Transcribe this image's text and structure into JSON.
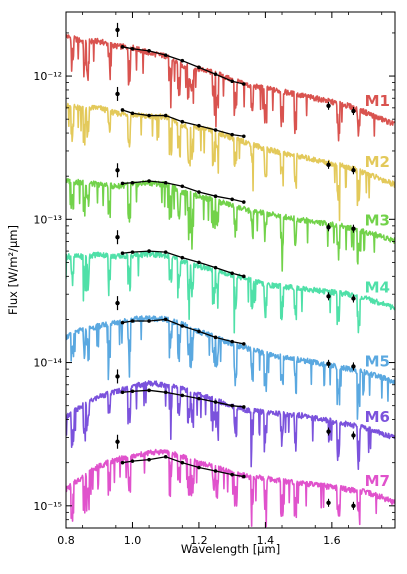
{
  "chart_data": {
    "type": "line",
    "xlabel": "Wavelength [μm]",
    "ylabel": "Flux [W/m²/μm]",
    "xlim": [
      0.8,
      1.79
    ],
    "ylim": [
      7e-16,
      2.8e-12
    ],
    "yscale": "log",
    "grid": false,
    "x_ticks": [
      0.8,
      1.0,
      1.2,
      1.4,
      1.6
    ],
    "x_tick_labels": [
      "0.8",
      "1.0",
      "1.2",
      "1.4",
      "1.6"
    ],
    "y_ticks": [
      1e-15,
      1e-14,
      1e-13,
      1e-12
    ],
    "y_tick_labels": [
      "10⁻¹⁵",
      "10⁻¹⁴",
      "10⁻¹³",
      "10⁻¹²"
    ],
    "series": [
      {
        "name": "M1",
        "color": "#d9534f",
        "model": [
          [
            0.8,
            1.9e-12
          ],
          [
            0.85,
            1.75e-12
          ],
          [
            0.9,
            1.75e-12
          ],
          [
            0.95,
            1.62e-12
          ],
          [
            1.0,
            1.58e-12
          ],
          [
            1.05,
            1.45e-12
          ],
          [
            1.1,
            1.38e-12
          ],
          [
            1.15,
            1.18e-12
          ],
          [
            1.2,
            1.12e-12
          ],
          [
            1.25,
            1.05e-12
          ],
          [
            1.3,
            9.4e-13
          ],
          [
            1.35,
            8.6e-13
          ],
          [
            1.4,
            8.2e-13
          ],
          [
            1.45,
            7.8e-13
          ],
          [
            1.5,
            7.4e-13
          ],
          [
            1.55,
            7e-13
          ],
          [
            1.6,
            6.6e-13
          ],
          [
            1.65,
            6.2e-13
          ],
          [
            1.7,
            5.6e-13
          ],
          [
            1.75,
            5e-13
          ],
          [
            1.79,
            4.6e-13
          ]
        ],
        "observed": [
          [
            0.955,
            2.1e-12
          ],
          [
            0.97,
            1.6e-12
          ],
          [
            1.0,
            1.55e-12
          ],
          [
            1.05,
            1.5e-12
          ],
          [
            1.1,
            1.4e-12
          ],
          [
            1.15,
            1.28e-12
          ],
          [
            1.2,
            1.15e-12
          ],
          [
            1.25,
            1.03e-12
          ],
          [
            1.3,
            9.2e-13
          ],
          [
            1.335,
            8.8e-13
          ]
        ],
        "photometry": [
          [
            1.59,
            6.2e-13
          ],
          [
            1.665,
            5.7e-13
          ]
        ]
      },
      {
        "name": "M2",
        "color": "#e3c95a",
        "model": [
          [
            0.8,
            6.2e-13
          ],
          [
            0.85,
            6e-13
          ],
          [
            0.9,
            6e-13
          ],
          [
            0.95,
            5.5e-13
          ],
          [
            1.0,
            5.4e-13
          ],
          [
            1.05,
            5.2e-13
          ],
          [
            1.1,
            5.2e-13
          ],
          [
            1.15,
            4.5e-13
          ],
          [
            1.2,
            4.3e-13
          ],
          [
            1.25,
            4.1e-13
          ],
          [
            1.3,
            3.7e-13
          ],
          [
            1.35,
            3.4e-13
          ],
          [
            1.4,
            3.1e-13
          ],
          [
            1.45,
            2.9e-13
          ],
          [
            1.5,
            2.75e-13
          ],
          [
            1.55,
            2.6e-13
          ],
          [
            1.6,
            2.45e-13
          ],
          [
            1.65,
            2.3e-13
          ],
          [
            1.7,
            2.1e-13
          ],
          [
            1.75,
            1.9e-13
          ],
          [
            1.79,
            1.75e-13
          ]
        ],
        "observed": [
          [
            0.955,
            7.5e-13
          ],
          [
            0.97,
            5.8e-13
          ],
          [
            1.0,
            5.5e-13
          ],
          [
            1.05,
            5.3e-13
          ],
          [
            1.1,
            5.3e-13
          ],
          [
            1.15,
            4.8e-13
          ],
          [
            1.2,
            4.5e-13
          ],
          [
            1.25,
            4.2e-13
          ],
          [
            1.3,
            3.9e-13
          ],
          [
            1.335,
            3.8e-13
          ]
        ],
        "photometry": [
          [
            1.59,
            2.4e-13
          ],
          [
            1.665,
            2.2e-13
          ]
        ]
      },
      {
        "name": "M3",
        "color": "#72d24a",
        "model": [
          [
            0.8,
            1.85e-13
          ],
          [
            0.85,
            1.8e-13
          ],
          [
            0.9,
            1.75e-13
          ],
          [
            0.95,
            1.7e-13
          ],
          [
            1.0,
            1.75e-13
          ],
          [
            1.05,
            1.8e-13
          ],
          [
            1.1,
            1.75e-13
          ],
          [
            1.15,
            1.55e-13
          ],
          [
            1.2,
            1.45e-13
          ],
          [
            1.25,
            1.35e-13
          ],
          [
            1.3,
            1.25e-13
          ],
          [
            1.35,
            1.15e-13
          ],
          [
            1.4,
            1.1e-13
          ],
          [
            1.45,
            1.05e-13
          ],
          [
            1.5,
            1e-13
          ],
          [
            1.55,
            9.6e-14
          ],
          [
            1.6,
            9.2e-14
          ],
          [
            1.65,
            8.8e-14
          ],
          [
            1.7,
            8.2e-14
          ],
          [
            1.75,
            7.6e-14
          ],
          [
            1.79,
            7.1e-14
          ]
        ],
        "observed": [
          [
            0.955,
            2.2e-13
          ],
          [
            0.97,
            1.78e-13
          ],
          [
            1.0,
            1.8e-13
          ],
          [
            1.05,
            1.85e-13
          ],
          [
            1.1,
            1.8e-13
          ],
          [
            1.15,
            1.7e-13
          ],
          [
            1.2,
            1.55e-13
          ],
          [
            1.25,
            1.45e-13
          ],
          [
            1.3,
            1.38e-13
          ],
          [
            1.335,
            1.32e-13
          ]
        ],
        "photometry": [
          [
            1.59,
            8.8e-14
          ],
          [
            1.665,
            8.6e-14
          ]
        ]
      },
      {
        "name": "M4",
        "color": "#4fe0a8",
        "model": [
          [
            0.8,
            5.5e-14
          ],
          [
            0.85,
            5.5e-14
          ],
          [
            0.9,
            5.7e-14
          ],
          [
            0.95,
            5.5e-14
          ],
          [
            1.0,
            5.6e-14
          ],
          [
            1.05,
            5.7e-14
          ],
          [
            1.1,
            5.6e-14
          ],
          [
            1.15,
            5.1e-14
          ],
          [
            1.2,
            4.7e-14
          ],
          [
            1.25,
            4.4e-14
          ],
          [
            1.3,
            4.1e-14
          ],
          [
            1.35,
            3.8e-14
          ],
          [
            1.4,
            3.5e-14
          ],
          [
            1.45,
            3.4e-14
          ],
          [
            1.5,
            3.3e-14
          ],
          [
            1.55,
            3.2e-14
          ],
          [
            1.6,
            3.1e-14
          ],
          [
            1.65,
            3e-14
          ],
          [
            1.7,
            2.8e-14
          ],
          [
            1.75,
            2.6e-14
          ],
          [
            1.79,
            2.4e-14
          ]
        ],
        "observed": [
          [
            0.955,
            7.5e-14
          ],
          [
            0.97,
            5.8e-14
          ],
          [
            1.0,
            5.9e-14
          ],
          [
            1.05,
            6e-14
          ],
          [
            1.1,
            5.9e-14
          ],
          [
            1.15,
            5.4e-14
          ],
          [
            1.2,
            5e-14
          ],
          [
            1.25,
            4.6e-14
          ],
          [
            1.3,
            4.2e-14
          ],
          [
            1.335,
            4e-14
          ]
        ],
        "photometry": [
          [
            1.59,
            2.9e-14
          ],
          [
            1.665,
            2.8e-14
          ]
        ]
      },
      {
        "name": "M5",
        "color": "#5aa8e0",
        "model": [
          [
            0.8,
            1.5e-14
          ],
          [
            0.85,
            1.7e-14
          ],
          [
            0.9,
            1.8e-14
          ],
          [
            0.95,
            1.9e-14
          ],
          [
            1.0,
            2e-14
          ],
          [
            1.05,
            2.05e-14
          ],
          [
            1.1,
            2e-14
          ],
          [
            1.15,
            1.85e-14
          ],
          [
            1.2,
            1.65e-14
          ],
          [
            1.25,
            1.5e-14
          ],
          [
            1.3,
            1.35e-14
          ],
          [
            1.35,
            1.25e-14
          ],
          [
            1.4,
            1.15e-14
          ],
          [
            1.45,
            1.1e-14
          ],
          [
            1.5,
            1.05e-14
          ],
          [
            1.55,
            1e-14
          ],
          [
            1.6,
            9.5e-15
          ],
          [
            1.65,
            9e-15
          ],
          [
            1.7,
            8.5e-15
          ],
          [
            1.75,
            7.9e-15
          ],
          [
            1.79,
            7.3e-15
          ]
        ],
        "observed": [
          [
            0.955,
            2.6e-14
          ],
          [
            0.97,
            1.9e-14
          ],
          [
            1.0,
            1.95e-14
          ],
          [
            1.05,
            1.95e-14
          ],
          [
            1.1,
            2e-14
          ],
          [
            1.15,
            1.8e-14
          ],
          [
            1.2,
            1.65e-14
          ],
          [
            1.25,
            1.5e-14
          ],
          [
            1.3,
            1.4e-14
          ],
          [
            1.335,
            1.35e-14
          ]
        ],
        "photometry": [
          [
            1.59,
            9.8e-15
          ],
          [
            1.665,
            9.4e-15
          ]
        ]
      },
      {
        "name": "M6",
        "color": "#7b52dc",
        "model": [
          [
            0.8,
            4.2e-15
          ],
          [
            0.85,
            5e-15
          ],
          [
            0.9,
            5.8e-15
          ],
          [
            0.95,
            6.3e-15
          ],
          [
            1.0,
            6.8e-15
          ],
          [
            1.05,
            7.2e-15
          ],
          [
            1.1,
            7e-15
          ],
          [
            1.15,
            6.6e-15
          ],
          [
            1.2,
            6e-15
          ],
          [
            1.25,
            5.5e-15
          ],
          [
            1.3,
            5e-15
          ],
          [
            1.35,
            4.6e-15
          ],
          [
            1.4,
            4.5e-15
          ],
          [
            1.45,
            4.4e-15
          ],
          [
            1.5,
            4.3e-15
          ],
          [
            1.55,
            4.1e-15
          ],
          [
            1.6,
            3.9e-15
          ],
          [
            1.65,
            3.7e-15
          ],
          [
            1.7,
            3.5e-15
          ],
          [
            1.75,
            3.2e-15
          ],
          [
            1.79,
            3e-15
          ]
        ],
        "observed": [
          [
            0.955,
            8e-15
          ],
          [
            0.97,
            6.2e-15
          ],
          [
            1.0,
            6.3e-15
          ],
          [
            1.05,
            6.4e-15
          ],
          [
            1.1,
            6.2e-15
          ],
          [
            1.15,
            5.9e-15
          ],
          [
            1.2,
            5.6e-15
          ],
          [
            1.25,
            5.3e-15
          ],
          [
            1.3,
            5e-15
          ],
          [
            1.335,
            4.9e-15
          ]
        ],
        "photometry": [
          [
            1.59,
            3.3e-15
          ],
          [
            1.665,
            3.1e-15
          ]
        ]
      },
      {
        "name": "M7",
        "color": "#e052cc",
        "model": [
          [
            0.8,
            1.3e-15
          ],
          [
            0.85,
            1.6e-15
          ],
          [
            0.9,
            1.9e-15
          ],
          [
            0.95,
            2.1e-15
          ],
          [
            1.0,
            2.2e-15
          ],
          [
            1.05,
            2.35e-15
          ],
          [
            1.1,
            2.4e-15
          ],
          [
            1.15,
            2.2e-15
          ],
          [
            1.2,
            2e-15
          ],
          [
            1.25,
            1.85e-15
          ],
          [
            1.3,
            1.7e-15
          ],
          [
            1.35,
            1.6e-15
          ],
          [
            1.4,
            1.55e-15
          ],
          [
            1.45,
            1.5e-15
          ],
          [
            1.5,
            1.45e-15
          ],
          [
            1.55,
            1.4e-15
          ],
          [
            1.6,
            1.35e-15
          ],
          [
            1.65,
            1.3e-15
          ],
          [
            1.7,
            1.25e-15
          ],
          [
            1.75,
            1.15e-15
          ],
          [
            1.79,
            1.05e-15
          ]
        ],
        "observed": [
          [
            0.955,
            2.8e-15
          ],
          [
            0.97,
            2e-15
          ],
          [
            1.0,
            2.05e-15
          ],
          [
            1.05,
            2.1e-15
          ],
          [
            1.1,
            2.2e-15
          ],
          [
            1.15,
            2e-15
          ],
          [
            1.2,
            1.85e-15
          ],
          [
            1.25,
            1.75e-15
          ],
          [
            1.3,
            1.65e-15
          ],
          [
            1.335,
            1.6e-15
          ]
        ],
        "photometry": [
          [
            1.59,
            1.05e-15
          ],
          [
            1.665,
            1e-15
          ]
        ]
      }
    ]
  }
}
